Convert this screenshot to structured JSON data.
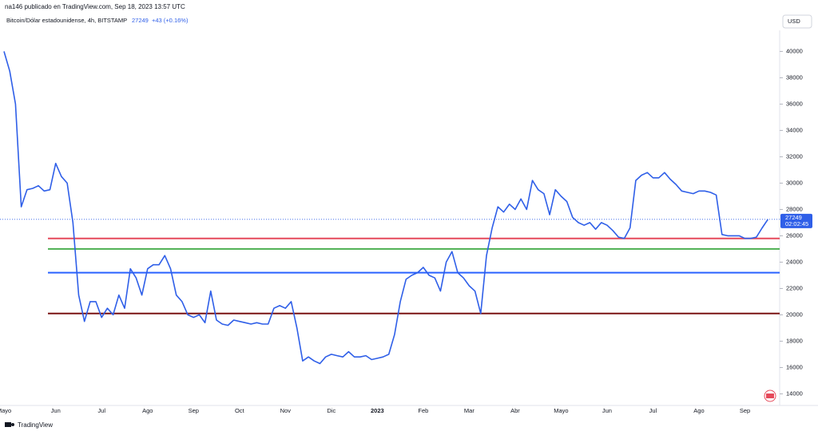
{
  "chart_data": {
    "type": "line",
    "subtitle": "na146 publicado en TradingView.com, Sep 18, 2023 13:57 UTC",
    "title": "Bitcoin/Dólar estadounidense, 4h, BITSTAMP",
    "last_price": 27249,
    "change_label": "+43 (+0.16%)",
    "currency": "USD",
    "countdown": "02:02:45",
    "footer": "TradingView",
    "color": "#2f5fe8",
    "categories": [
      "Mayo",
      null,
      null,
      null,
      null,
      null,
      null,
      null,
      null,
      "Jun",
      null,
      null,
      null,
      null,
      null,
      null,
      null,
      "Jul",
      null,
      null,
      null,
      null,
      null,
      null,
      null,
      "Ago",
      null,
      null,
      null,
      null,
      null,
      null,
      null,
      "Sep",
      null,
      null,
      null,
      null,
      null,
      null,
      null,
      "Oct",
      null,
      null,
      null,
      null,
      null,
      null,
      null,
      "Nov",
      null,
      null,
      null,
      null,
      null,
      null,
      null,
      "Dic",
      null,
      null,
      null,
      null,
      null,
      null,
      null,
      "2023",
      null,
      null,
      null,
      null,
      null,
      null,
      null,
      "Feb",
      null,
      null,
      null,
      null,
      null,
      null,
      null,
      "Mar",
      null,
      null,
      null,
      null,
      null,
      null,
      null,
      "Abr",
      null,
      null,
      null,
      null,
      null,
      null,
      null,
      "Mayo",
      null,
      null,
      null,
      null,
      null,
      null,
      null,
      "Jun",
      null,
      null,
      null,
      null,
      null,
      null,
      null,
      "Jul",
      null,
      null,
      null,
      null,
      null,
      null,
      null,
      "Ago",
      null,
      null,
      null,
      null,
      null,
      null,
      null,
      "Sep",
      null,
      null,
      null,
      null
    ],
    "values": [
      40000,
      38500,
      36000,
      28200,
      29500,
      29600,
      29800,
      29400,
      29500,
      31500,
      30500,
      30000,
      27000,
      21500,
      19500,
      21000,
      21000,
      19800,
      20500,
      20000,
      21500,
      20500,
      23500,
      22800,
      21500,
      23500,
      23800,
      23800,
      24500,
      23500,
      21500,
      21000,
      20000,
      19800,
      20000,
      19400,
      21800,
      19600,
      19300,
      19200,
      19600,
      19500,
      19400,
      19300,
      19400,
      19300,
      19300,
      20500,
      20700,
      20500,
      21000,
      19000,
      16500,
      16800,
      16500,
      16300,
      16800,
      17000,
      16900,
      16800,
      17200,
      16800,
      16800,
      16900,
      16600,
      16700,
      16800,
      17000,
      18500,
      21000,
      22700,
      23000,
      23200,
      23600,
      23000,
      22800,
      21800,
      24000,
      24800,
      23200,
      22800,
      22200,
      21800,
      20100,
      24500,
      26600,
      28200,
      27800,
      28400,
      28000,
      28800,
      28000,
      30200,
      29500,
      29200,
      27600,
      29500,
      29000,
      28600,
      27400,
      27000,
      26800,
      27000,
      26500,
      27000,
      26800,
      26400,
      25900,
      25800,
      26600,
      30200,
      30600,
      30800,
      30400,
      30400,
      30800,
      30300,
      29900,
      29400,
      29300,
      29200,
      29400,
      29400,
      29300,
      29100,
      26100,
      26000,
      26000,
      26000,
      25800,
      25800,
      25900,
      26600,
      27249
    ],
    "ylim": [
      13300,
      41600
    ],
    "yticks": [
      14000,
      16000,
      18000,
      20000,
      22000,
      24000,
      26000,
      28000,
      30000,
      32000,
      34000,
      36000,
      38000,
      40000
    ],
    "grid": false,
    "hlines": [
      {
        "value": 25800,
        "color": "#e5495a"
      },
      {
        "value": 25000,
        "color": "#4caf50"
      },
      {
        "value": 23200,
        "color": "#2962ff"
      },
      {
        "value": 20100,
        "color": "#7a1414"
      }
    ]
  }
}
